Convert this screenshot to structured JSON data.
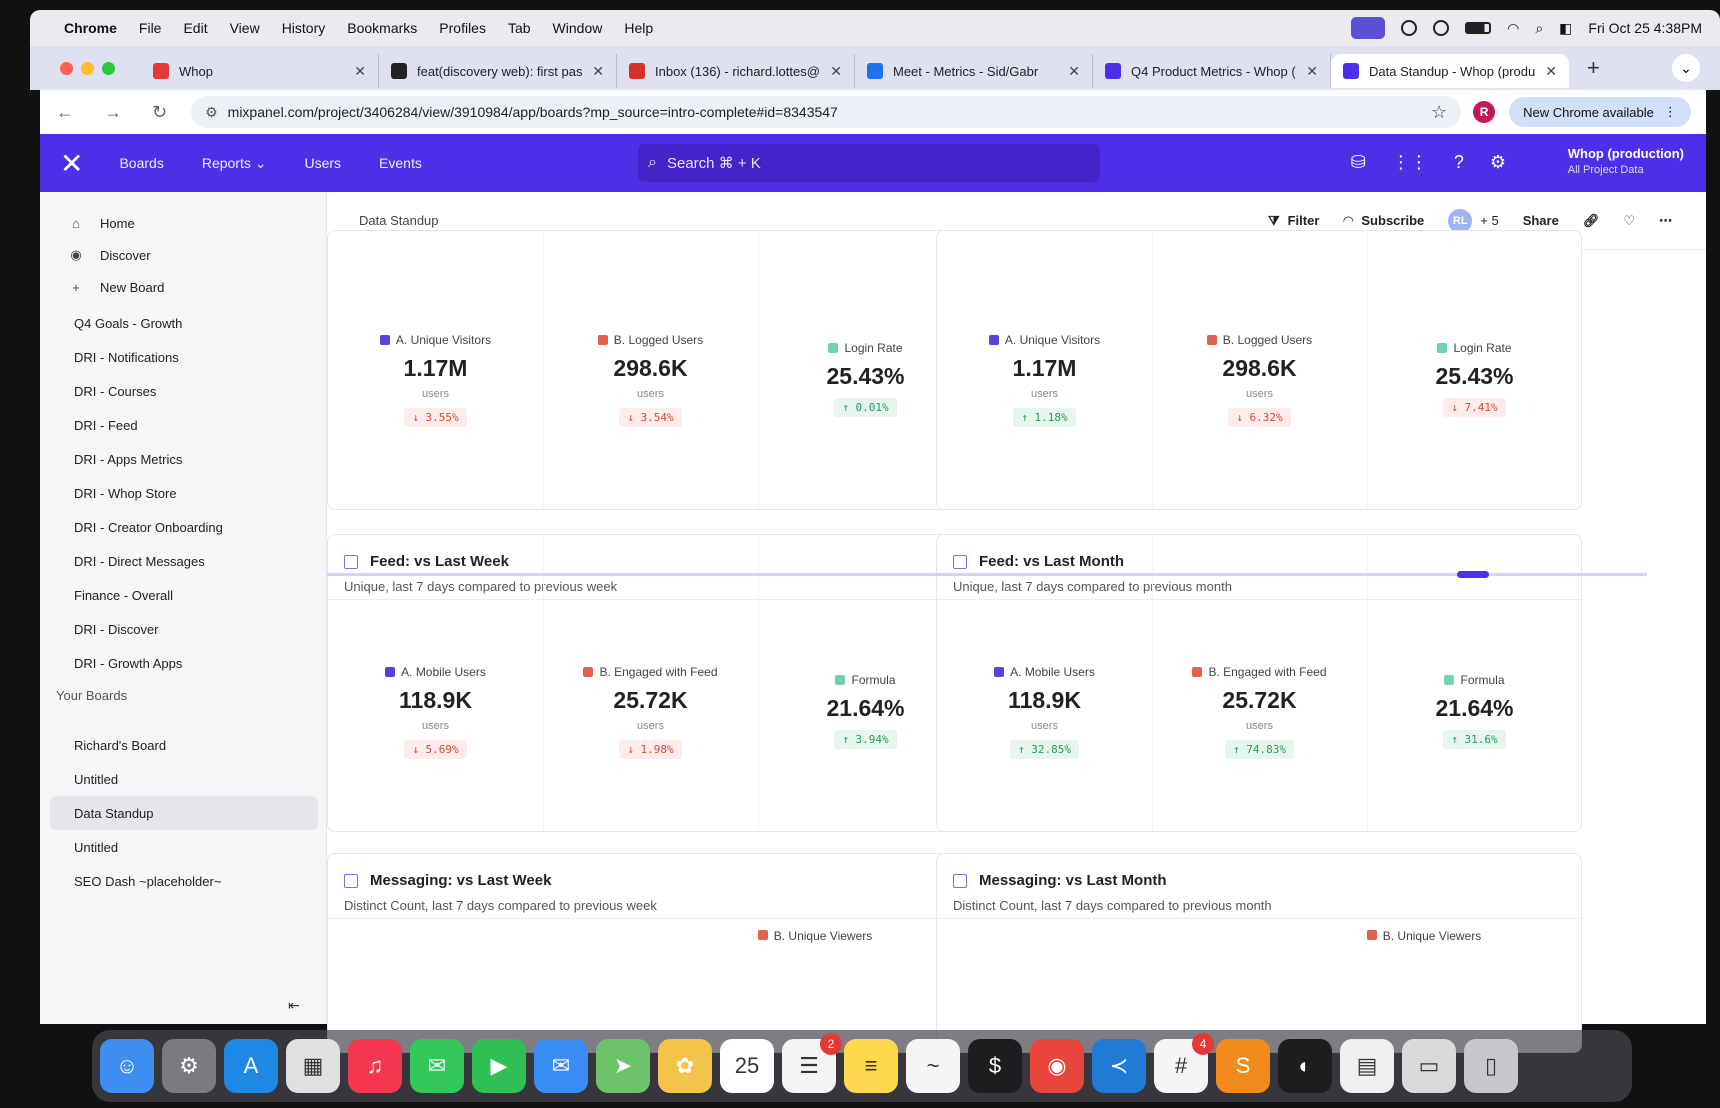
{
  "menubar": {
    "items": [
      "Chrome",
      "File",
      "Edit",
      "View",
      "History",
      "Bookmarks",
      "Profiles",
      "Tab",
      "Window",
      "Help"
    ],
    "clock": "Fri Oct 25  4:38PM"
  },
  "tabs": [
    {
      "title": "Whop",
      "color": "#e53935"
    },
    {
      "title": "feat(discovery web): first pas",
      "color": "#222222"
    },
    {
      "title": "Inbox (136) - richard.lottes@",
      "color": "#d93025"
    },
    {
      "title": "Meet - Metrics - Sid/Gabr",
      "color": "#1a73e8"
    },
    {
      "title": "Q4 Product Metrics - Whop (",
      "color": "#4f2ee8"
    },
    {
      "title": "Data Standup - Whop (produ",
      "color": "#4f2ee8"
    }
  ],
  "browser": {
    "url": "mixpanel.com/project/3406284/view/3910984/app/boards?mp_source=intro-complete#id=8343547",
    "profile_initial": "R",
    "new_chrome": "New Chrome available"
  },
  "header": {
    "nav": [
      "Boards",
      "Reports",
      "Users",
      "Events"
    ],
    "search_placeholder": "Search  ⌘ + K",
    "project_name": "Whop (production)",
    "project_sub": "All Project Data"
  },
  "sidebar": {
    "top": [
      {
        "label": "Home",
        "icon": "⌂"
      },
      {
        "label": "Discover",
        "icon": "◉"
      },
      {
        "label": "New Board",
        "icon": "+"
      }
    ],
    "boards": [
      "Q4 Goals - Growth",
      "DRI - Notifications",
      "DRI - Courses",
      "DRI - Feed",
      "DRI - Apps Metrics",
      "DRI - Whop Store",
      "DRI - Creator Onboarding",
      "DRI - Direct Messages",
      "Finance - Overall",
      "DRI - Discover",
      "DRI - Growth Apps"
    ],
    "your_boards_title": "Your Boards",
    "your_boards": [
      "Richard's Board",
      "Untitled",
      "Data Standup",
      "Untitled",
      "SEO Dash ~placeholder~"
    ]
  },
  "subheader": {
    "breadcrumb": "Data Standup",
    "filter": "Filter",
    "subscribe": "Subscribe",
    "avatar": "RL",
    "plus_count": "+ 5",
    "share": "Share"
  },
  "cards": [
    {
      "title": "",
      "subtitle": "",
      "metrics": [
        {
          "label": "A. Unique Visitors",
          "value": "1.17M",
          "unit": "users",
          "change": "↓ 3.55%",
          "dir": "down",
          "color": "#5b3fe0"
        },
        {
          "label": "B. Logged Users",
          "value": "298.6K",
          "unit": "users",
          "change": "↓ 3.54%",
          "dir": "down",
          "color": "#e0614f"
        },
        {
          "label": "Login Rate",
          "value": "25.43%",
          "unit": "",
          "change": "↑ 0.01%",
          "dir": "up",
          "color": "#6fd3b0"
        }
      ]
    },
    {
      "title": "",
      "subtitle": "",
      "metrics": [
        {
          "label": "A. Unique Visitors",
          "value": "1.17M",
          "unit": "users",
          "change": "↑ 1.18%",
          "dir": "up",
          "color": "#5b3fe0"
        },
        {
          "label": "B. Logged Users",
          "value": "298.6K",
          "unit": "users",
          "change": "↓ 6.32%",
          "dir": "down",
          "color": "#e0614f"
        },
        {
          "label": "Login Rate",
          "value": "25.43%",
          "unit": "",
          "change": "↓ 7.41%",
          "dir": "down",
          "color": "#6fd3b0"
        }
      ]
    },
    {
      "title": "Feed: vs Last Week",
      "subtitle": "Unique, last 7 days compared to previous week",
      "metrics": [
        {
          "label": "A. Mobile Users",
          "value": "118.9K",
          "unit": "users",
          "change": "↓ 5.69%",
          "dir": "down",
          "color": "#5b3fe0"
        },
        {
          "label": "B. Engaged with Feed",
          "value": "25.72K",
          "unit": "users",
          "change": "↓ 1.98%",
          "dir": "down",
          "color": "#e0614f"
        },
        {
          "label": "Formula",
          "value": "21.64%",
          "unit": "",
          "change": "↑ 3.94%",
          "dir": "up",
          "color": "#6fd3b0"
        }
      ]
    },
    {
      "title": "Feed: vs Last Month",
      "subtitle": "Unique, last 7 days compared to previous month",
      "metrics": [
        {
          "label": "A. Mobile Users",
          "value": "118.9K",
          "unit": "users",
          "change": "↑ 32.85%",
          "dir": "up",
          "color": "#5b3fe0"
        },
        {
          "label": "B. Engaged with Feed",
          "value": "25.72K",
          "unit": "users",
          "change": "↑ 74.83%",
          "dir": "up",
          "color": "#e0614f"
        },
        {
          "label": "Formula",
          "value": "21.64%",
          "unit": "",
          "change": "↑ 31.6%",
          "dir": "up",
          "color": "#6fd3b0"
        }
      ]
    },
    {
      "title": "Messaging: vs Last Week",
      "subtitle": "Distinct Count, last 7 days compared to previous week",
      "peek_label": "B. Unique Viewers"
    },
    {
      "title": "Messaging: vs Last Month",
      "subtitle": "Distinct Count, last 7 days compared to previous month",
      "peek_label": "B. Unique Viewers"
    }
  ],
  "dock": {
    "apps": [
      {
        "name": "finder-icon",
        "color": "#3d8ef0",
        "glyph": "☺",
        "badge": ""
      },
      {
        "name": "system-settings-icon",
        "color": "#7a7a80",
        "glyph": "⚙",
        "badge": ""
      },
      {
        "name": "app-store-icon",
        "color": "#1e88e5",
        "glyph": "A",
        "badge": ""
      },
      {
        "name": "launchpad-icon",
        "color": "#e0e0e0",
        "glyph": "▦",
        "badge": ""
      },
      {
        "name": "music-icon",
        "color": "#f5364f",
        "glyph": "♫",
        "badge": ""
      },
      {
        "name": "messages-icon",
        "color": "#34c759",
        "glyph": "✉",
        "badge": ""
      },
      {
        "name": "facetime-icon",
        "color": "#2fbf55",
        "glyph": "▶",
        "badge": ""
      },
      {
        "name": "mail-icon",
        "color": "#3a8cf5",
        "glyph": "✉",
        "badge": ""
      },
      {
        "name": "maps-icon",
        "color": "#6cc36a",
        "glyph": "➤",
        "badge": ""
      },
      {
        "name": "photos-icon",
        "color": "#f3c34a",
        "glyph": "✿",
        "badge": ""
      },
      {
        "name": "calendar-icon",
        "color": "#ffffff",
        "glyph": "25",
        "badge": ""
      },
      {
        "name": "reminders-icon",
        "color": "#f5f5f5",
        "glyph": "☰",
        "badge": "2"
      },
      {
        "name": "notes-icon",
        "color": "#ffd84d",
        "glyph": "≡",
        "badge": ""
      },
      {
        "name": "freeform-icon",
        "color": "#f5f5f5",
        "glyph": "~",
        "badge": ""
      },
      {
        "name": "terminal-icon",
        "color": "#1d1d1f",
        "glyph": "$",
        "badge": ""
      },
      {
        "name": "chrome-icon",
        "color": "#e8453c",
        "glyph": "◉",
        "badge": ""
      },
      {
        "name": "vscode-icon",
        "color": "#1f7bd4",
        "glyph": "≺",
        "badge": ""
      },
      {
        "name": "slack-icon",
        "color": "#f5f5f5",
        "glyph": "#",
        "badge": "4"
      },
      {
        "name": "sublime-icon",
        "color": "#f28b1c",
        "glyph": "S",
        "badge": ""
      },
      {
        "name": "linear-icon",
        "color": "#1d1d1f",
        "glyph": "◐",
        "badge": ""
      },
      {
        "name": "document-icon",
        "color": "#f0f0f0",
        "glyph": "▤",
        "badge": ""
      },
      {
        "name": "downloads-icon",
        "color": "#dadada",
        "glyph": "▭",
        "badge": ""
      },
      {
        "name": "trash-icon",
        "color": "#c8c8cc",
        "glyph": "▯",
        "badge": ""
      }
    ]
  }
}
